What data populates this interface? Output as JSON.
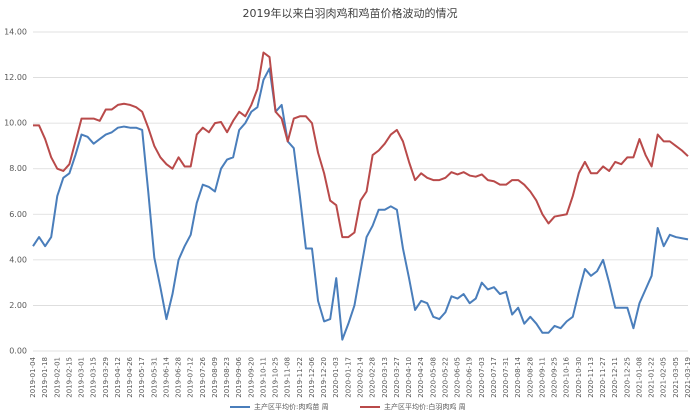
{
  "chart_data": {
    "type": "line",
    "title": "2019年以来白羽肉鸡和鸡苗价格波动的情况",
    "categories": [
      "2019-01-04",
      null,
      "2019-01-18",
      null,
      "2019-02-01",
      null,
      "2019-02-15",
      null,
      "2019-03-01",
      null,
      "2019-03-15",
      null,
      "2019-03-29",
      null,
      "2019-04-12",
      null,
      "2019-04-26",
      null,
      "2019-05-17",
      null,
      "2019-05-31",
      null,
      "2019-06-14",
      null,
      "2019-06-28",
      null,
      "2019-07-12",
      null,
      "2019-07-26",
      null,
      "2019-08-09",
      null,
      "2019-08-23",
      null,
      "2019-09-06",
      null,
      "2019-09-20",
      null,
      "2019-10-11",
      null,
      "2019-10-25",
      null,
      "2019-11-08",
      null,
      "2019-11-22",
      null,
      "2019-12-06",
      null,
      "2019-12-20",
      null,
      "2020-01-03",
      null,
      "2020-01-17",
      null,
      "2020-02-14",
      null,
      "2020-02-28",
      null,
      "2020-03-13",
      null,
      "2020-03-27",
      null,
      "2020-04-10",
      null,
      "2020-04-24",
      null,
      "2020-05-08",
      null,
      "2020-05-22",
      null,
      "2020-06-05",
      null,
      "2020-06-19",
      null,
      "2020-07-03",
      null,
      "2020-07-17",
      null,
      "2020-07-31",
      null,
      "2020-08-14",
      null,
      "2020-08-28",
      null,
      "2020-09-11",
      null,
      "2020-09-25",
      null,
      "2020-10-16",
      null,
      "2020-10-30",
      null,
      "2020-11-13",
      null,
      "2020-11-27",
      null,
      "2020-12-11",
      null,
      "2020-12-25",
      null,
      "2021-01-08",
      null,
      "2021-01-22",
      null,
      "2021-02-05",
      null,
      "2021-03-05",
      null,
      "2021-03-19"
    ],
    "series": [
      {
        "name": "主产区平均价:肉鸡苗 周",
        "color": "#4a7ebb",
        "values": [
          4.6,
          5.0,
          4.6,
          5.0,
          6.8,
          7.6,
          7.8,
          8.6,
          9.5,
          9.4,
          9.1,
          9.3,
          9.5,
          9.6,
          9.8,
          9.85,
          9.8,
          9.8,
          9.7,
          7.0,
          4.1,
          2.8,
          1.4,
          2.5,
          4.0,
          4.6,
          5.1,
          6.5,
          7.3,
          7.2,
          7.0,
          8.0,
          8.4,
          8.5,
          9.7,
          10.0,
          10.5,
          10.7,
          11.9,
          12.4,
          10.5,
          10.8,
          9.2,
          8.9,
          6.8,
          4.5,
          4.5,
          2.2,
          1.3,
          1.4,
          3.2,
          0.5,
          1.2,
          2.0,
          3.5,
          5.0,
          5.5,
          6.2,
          6.2,
          6.35,
          6.2,
          4.5,
          3.2,
          1.8,
          2.2,
          2.1,
          1.5,
          1.4,
          1.7,
          2.4,
          2.3,
          2.5,
          2.1,
          2.3,
          3.0,
          2.7,
          2.8,
          2.5,
          2.6,
          1.6,
          1.9,
          1.2,
          1.5,
          1.2,
          0.8,
          0.8,
          1.1,
          1.0,
          1.3,
          1.5,
          2.6,
          3.6,
          3.3,
          3.5,
          4.0,
          3.0,
          1.9,
          1.9,
          1.9,
          1.0,
          2.1,
          2.7,
          3.3,
          5.4,
          4.6,
          5.1,
          5.0,
          4.95,
          4.9
        ]
      },
      {
        "name": "主产区平均价:白羽肉鸡 周",
        "color": "#b94a4a",
        "values": [
          9.9,
          9.9,
          9.3,
          8.5,
          8.0,
          7.9,
          8.2,
          9.2,
          10.2,
          10.2,
          10.2,
          10.1,
          10.6,
          10.6,
          10.8,
          10.85,
          10.8,
          10.7,
          10.5,
          9.8,
          9.0,
          8.5,
          8.2,
          8.0,
          8.5,
          8.1,
          8.1,
          9.5,
          9.8,
          9.6,
          10.0,
          10.05,
          9.6,
          10.1,
          10.5,
          10.3,
          10.8,
          11.5,
          13.1,
          12.9,
          10.5,
          10.2,
          9.2,
          10.2,
          10.3,
          10.3,
          10.0,
          8.7,
          7.8,
          6.6,
          6.4,
          5.0,
          5.0,
          5.2,
          6.6,
          7.0,
          8.6,
          8.8,
          9.1,
          9.5,
          9.7,
          9.2,
          8.3,
          7.5,
          7.8,
          7.6,
          7.5,
          7.5,
          7.6,
          7.85,
          7.75,
          7.85,
          7.7,
          7.65,
          7.75,
          7.5,
          7.45,
          7.3,
          7.3,
          7.5,
          7.5,
          7.3,
          7.0,
          6.6,
          6.0,
          5.6,
          5.9,
          5.95,
          6.0,
          6.8,
          7.8,
          8.3,
          7.8,
          7.8,
          8.1,
          7.9,
          8.3,
          8.2,
          8.5,
          8.5,
          9.3,
          8.6,
          8.1,
          9.5,
          9.2,
          9.2,
          9.0,
          8.8,
          8.55
        ]
      }
    ],
    "ylim": [
      0,
      14
    ],
    "yticks": [
      {
        "value": 0,
        "label": "0.00"
      },
      {
        "value": 2,
        "label": "2.00"
      },
      {
        "value": 4,
        "label": "4.00"
      },
      {
        "value": 6,
        "label": "6.00"
      },
      {
        "value": 8,
        "label": "8.00"
      },
      {
        "value": 10,
        "label": "10.00"
      },
      {
        "value": 12,
        "label": "12.00"
      },
      {
        "value": 14,
        "label": "14.00"
      }
    ],
    "grid": true,
    "legend": "bottom"
  }
}
